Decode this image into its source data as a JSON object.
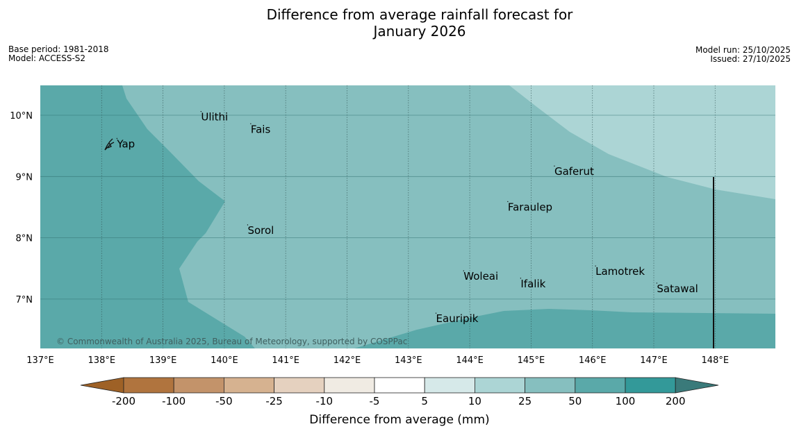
{
  "title_line1": "Difference from average rainfall forecast for",
  "title_line2": "January 2026",
  "meta_left": {
    "base_period": "Base period: 1981-2018",
    "model": "Model: ACCESS-S2"
  },
  "meta_right": {
    "model_run": "Model run: 25/10/2025",
    "issued": "Issued: 27/10/2025"
  },
  "copyright": "© Commonwealth of Australia 2025, Bureau of Meteorology, supported by COSPPac",
  "map": {
    "lon_labels": [
      "137°E",
      "138°E",
      "139°E",
      "140°E",
      "141°E",
      "142°E",
      "143°E",
      "144°E",
      "145°E",
      "146°E",
      "147°E",
      "148°E"
    ],
    "lat_labels": [
      "10°N",
      "9°N",
      "8°N",
      "7°N"
    ],
    "places": [
      {
        "name": "Yap",
        "lon": 138.25,
        "lat": 9.53
      },
      {
        "name": "Ulithi",
        "lon": 139.62,
        "lat": 9.97
      },
      {
        "name": "Fais",
        "lon": 140.43,
        "lat": 9.77
      },
      {
        "name": "Gaferut",
        "lon": 145.38,
        "lat": 9.08
      },
      {
        "name": "Faraulep",
        "lon": 144.62,
        "lat": 8.5
      },
      {
        "name": "Sorol",
        "lon": 140.38,
        "lat": 8.12
      },
      {
        "name": "Lamotrek",
        "lon": 146.05,
        "lat": 7.45
      },
      {
        "name": "Woleai",
        "lon": 143.9,
        "lat": 7.37
      },
      {
        "name": "Ifalik",
        "lon": 144.83,
        "lat": 7.25
      },
      {
        "name": "Satawal",
        "lon": 147.05,
        "lat": 7.17
      },
      {
        "name": "Eauripik",
        "lon": 143.45,
        "lat": 6.68
      }
    ]
  },
  "colorbar": {
    "labels": [
      "-200",
      "-100",
      "-50",
      "-25",
      "-10",
      "-5",
      "5",
      "10",
      "25",
      "50",
      "100",
      "200"
    ],
    "colors": [
      "#9e6126",
      "#b0743e",
      "#c3936a",
      "#d6b290",
      "#e5d1bf",
      "#f0ebe3",
      "#ffffff",
      "#d6e9e9",
      "#acd5d5",
      "#86bfbf",
      "#5aa9a9",
      "#339999",
      "#3a7a7a"
    ],
    "title": "Difference from average (mm)"
  }
}
